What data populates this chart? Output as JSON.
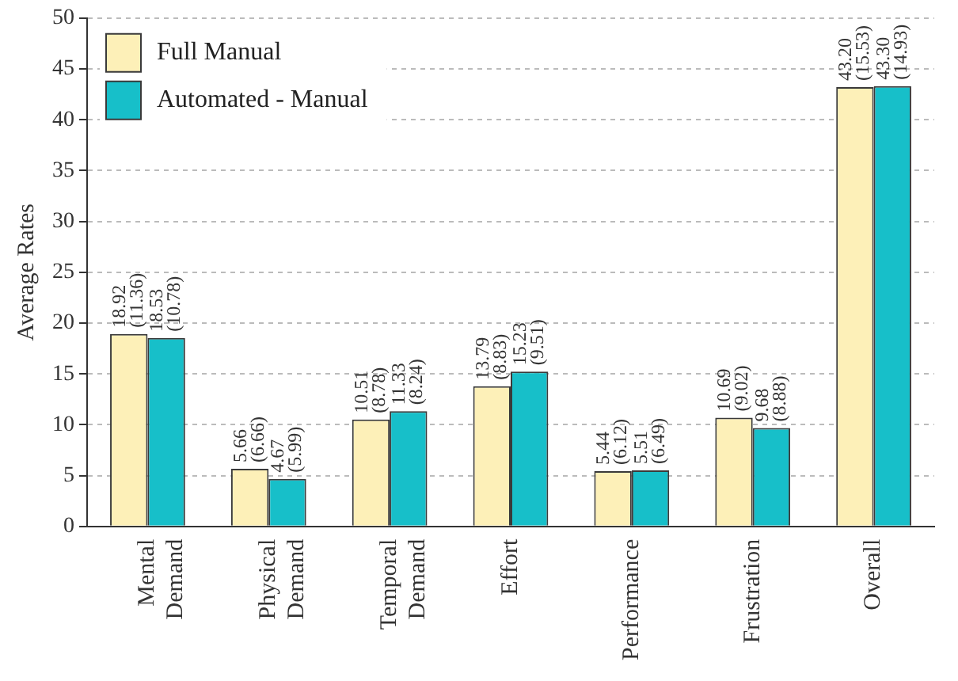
{
  "chart_data": {
    "type": "bar",
    "ylabel": "Average Rates",
    "categories": [
      "Mental Demand",
      "Physical Demand",
      "Temporal Demand",
      "Effort",
      "Performance",
      "Frustration",
      "Overall"
    ],
    "series": [
      {
        "name": "Full Manual",
        "color": "#fdf0b8",
        "values": [
          18.92,
          5.66,
          10.51,
          13.79,
          5.44,
          10.69,
          43.2
        ],
        "value_labels": [
          "18.92\n(11.36)",
          "5.66\n(6.66)",
          "10.51\n(8.78)",
          "13.79\n(8.83)",
          "5.44\n(6.12)",
          "10.69\n(9.02)",
          "43.20\n(15.53)"
        ]
      },
      {
        "name": "Automated - Manual",
        "color": "#17bfc9",
        "values": [
          18.53,
          4.67,
          11.33,
          15.23,
          5.51,
          9.68,
          43.3
        ],
        "value_labels": [
          "18.53\n(10.78)",
          "4.67\n(5.99)",
          "11.33\n(8.24)",
          "15.23\n(9.51)",
          "5.51\n(6.49)",
          "9.68\n(8.88)",
          "43.30\n(14.93)"
        ]
      }
    ],
    "ylim": [
      0,
      50
    ],
    "yticks": [
      0,
      5,
      10,
      15,
      20,
      25,
      30,
      35,
      40,
      45,
      50
    ],
    "grid": "y",
    "legend": "top left"
  }
}
